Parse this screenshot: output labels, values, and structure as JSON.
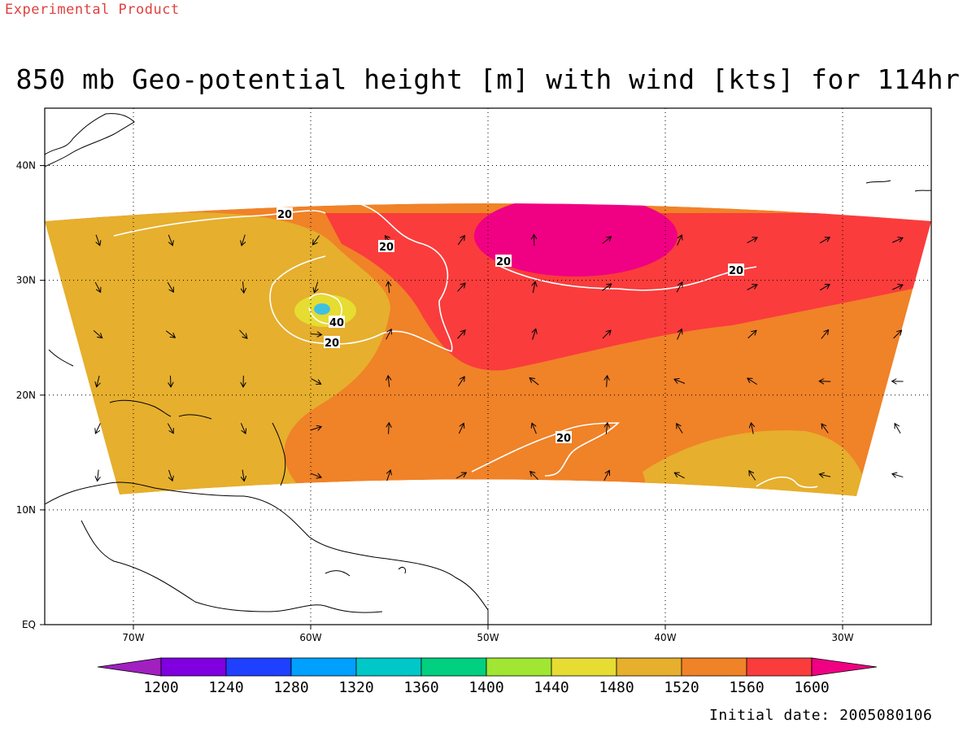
{
  "header": {
    "experimental": "Experimental Product",
    "title": "850 mb Geo-potential height [m] with wind [kts] for 114hr",
    "initial_date": "Initial date: 2005080106"
  },
  "map": {
    "lon_range": [
      -75,
      -25
    ],
    "lat_range": [
      0,
      45
    ],
    "lat_ticks": [
      "EQ",
      "10N",
      "20N",
      "30N",
      "40N"
    ],
    "lon_ticks": [
      "70W",
      "60W",
      "50W",
      "40W",
      "30W"
    ],
    "grid": true,
    "contour_labels": [
      "20",
      "20",
      "20",
      "20",
      "40",
      "20",
      "20"
    ]
  },
  "colorbar": {
    "levels": [
      "1200",
      "1240",
      "1280",
      "1320",
      "1360",
      "1400",
      "1440",
      "1480",
      "1520",
      "1560",
      "1600"
    ],
    "colors": [
      "#a020c0",
      "#8000e0",
      "#2040ff",
      "#00a0ff",
      "#00c8c8",
      "#00d080",
      "#a0e632",
      "#e6dc32",
      "#e6af2d",
      "#f08228",
      "#fa3c3c",
      "#f00082"
    ]
  },
  "field_colors": {
    "c1480": "#e6dc32",
    "c1520": "#e6af2d",
    "c1560": "#f08228",
    "c1600": "#fa3c3c",
    "c1640": "#f00082",
    "center": "#40c0e0"
  }
}
